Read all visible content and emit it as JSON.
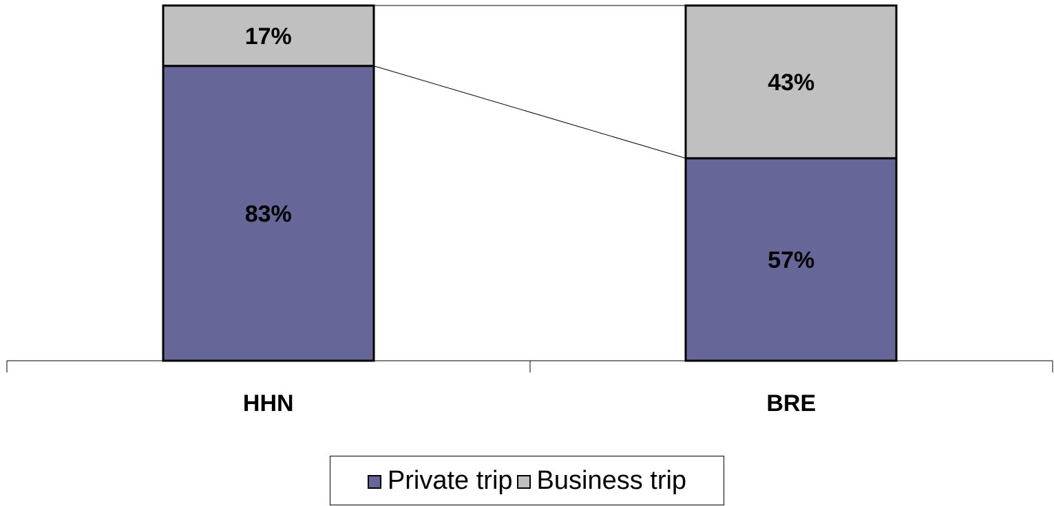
{
  "chart_data": {
    "type": "bar",
    "stacked": true,
    "percent_stacked": true,
    "categories": [
      "HHN",
      "BRE"
    ],
    "series": [
      {
        "name": "Private trip",
        "values": [
          83,
          57
        ],
        "labels": [
          "83%",
          "57%"
        ],
        "color": "#666699"
      },
      {
        "name": "Business trip",
        "values": [
          17,
          43
        ],
        "labels": [
          "17%",
          "43%"
        ],
        "color": "#C0C0C0"
      }
    ],
    "ylim": [
      0,
      100
    ],
    "series_lines": true,
    "grid": false,
    "legend_position": "bottom"
  }
}
